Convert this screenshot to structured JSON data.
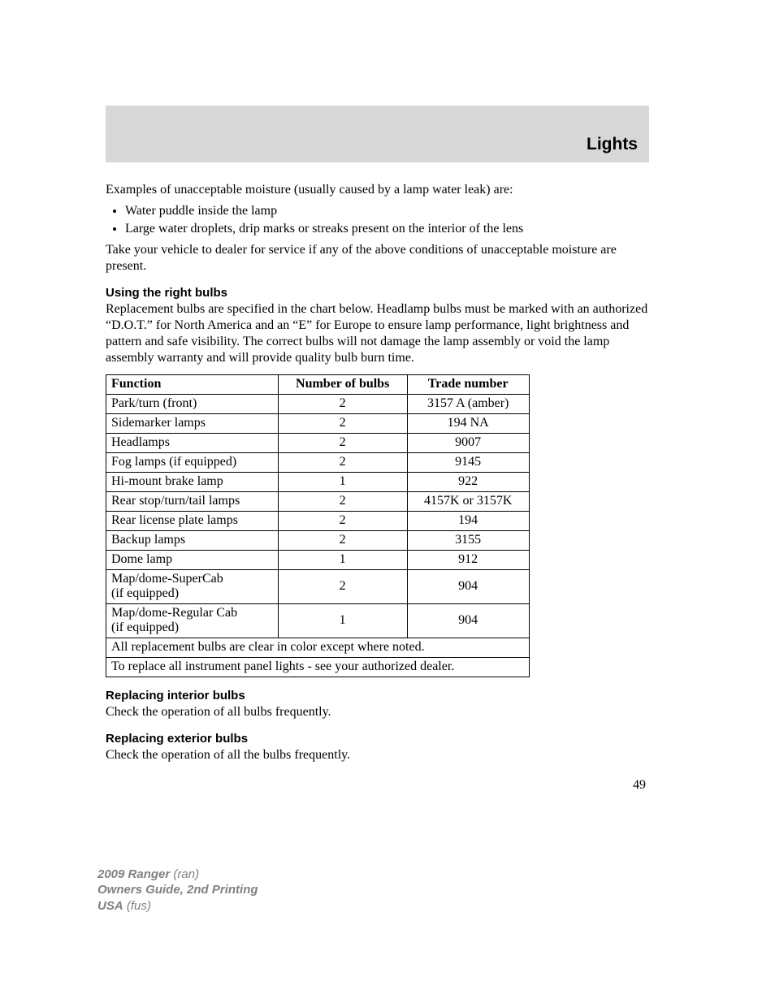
{
  "header": {
    "title": "Lights"
  },
  "intro": {
    "p1": "Examples of unacceptable moisture (usually caused by a lamp water leak) are:",
    "bullets": [
      "Water puddle inside the lamp",
      "Large water droplets, drip marks or streaks present on the interior of the lens"
    ],
    "p2": "Take your vehicle to dealer for service if any of the above conditions of unacceptable moisture are present."
  },
  "section_right_bulbs": {
    "heading": "Using the right bulbs",
    "p1": "Replacement bulbs are specified in the chart below. Headlamp bulbs must be marked with an authorized “D.O.T.” for North America and an “E” for Europe to ensure lamp performance, light brightness and pattern and safe visibility. The correct bulbs will not damage the lamp assembly or void the lamp assembly warranty and will provide quality bulb burn time."
  },
  "table": {
    "columns": [
      "Function",
      "Number of bulbs",
      "Trade number"
    ],
    "rows": [
      [
        "Park/turn (front)",
        "2",
        "3157 A (amber)"
      ],
      [
        "Sidemarker lamps",
        "2",
        "194 NA"
      ],
      [
        "Headlamps",
        "2",
        "9007"
      ],
      [
        "Fog lamps (if equipped)",
        "2",
        "9145"
      ],
      [
        "Hi-mount brake lamp",
        "1",
        "922"
      ],
      [
        "Rear stop/turn/tail lamps",
        "2",
        "4157K or 3157K"
      ],
      [
        "Rear license plate lamps",
        "2",
        "194"
      ],
      [
        "Backup lamps",
        "2",
        "3155"
      ],
      [
        "Dome lamp",
        "1",
        "912"
      ],
      [
        "Map/dome-SuperCab\n(if equipped)",
        "2",
        "904"
      ],
      [
        "Map/dome-Regular Cab\n(if equipped)",
        "1",
        "904"
      ]
    ],
    "footer_rows": [
      "All replacement bulbs are clear in color except where noted.",
      "To replace all instrument panel lights - see your authorized dealer."
    ]
  },
  "section_interior": {
    "heading": "Replacing interior bulbs",
    "p1": "Check the operation of all bulbs frequently."
  },
  "section_exterior": {
    "heading": "Replacing exterior bulbs",
    "p1": "Check the operation of all the bulbs frequently."
  },
  "page_number": "49",
  "footer": {
    "line1_bold": "2009 Ranger",
    "line1_rest": "(ran)",
    "line2": "Owners Guide, 2nd Printing",
    "line3_bold": "USA",
    "line3_rest": "(fus)"
  }
}
